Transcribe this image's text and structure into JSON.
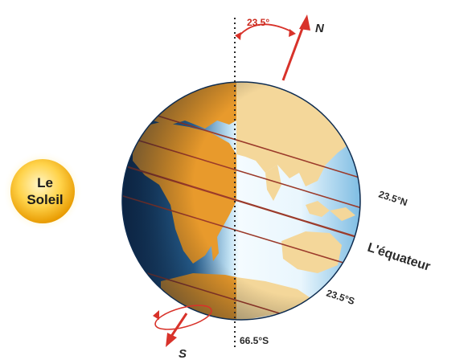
{
  "sun": {
    "line1": "Le",
    "line2": "Soleil"
  },
  "tilt_angle": "23.5°",
  "north_label": "N",
  "south_label": "S",
  "equator_label": "L'équateur",
  "tropic_north": "23.5°N",
  "tropic_south": "23.5°S",
  "antarctic_circle": "66.5°S",
  "colors": {
    "ocean_dark": "#143a63",
    "ocean_light": "#cfe8f6",
    "land_day": "#f4d79a",
    "land_night": "#e89a2c",
    "axis": "#d8322a",
    "latitude_line": "#9b3a2a",
    "sun": "#f5b400"
  }
}
